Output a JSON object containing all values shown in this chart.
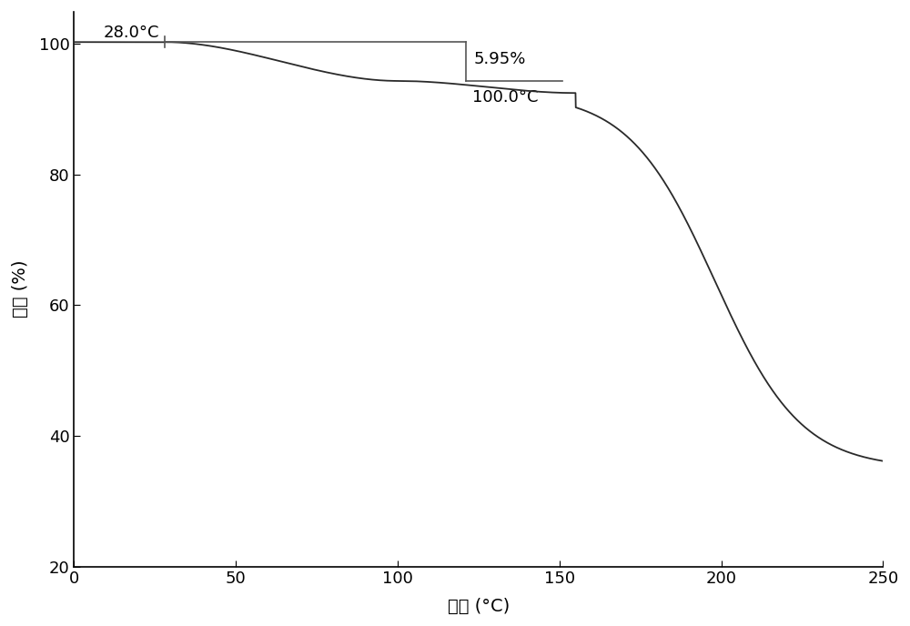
{
  "xlabel": "温度 (°C)",
  "ylabel": "重量 (%)",
  "xlim": [
    0,
    250
  ],
  "ylim": [
    20,
    105
  ],
  "xticks": [
    0,
    50,
    100,
    150,
    200,
    250
  ],
  "yticks": [
    20,
    40,
    60,
    80,
    100
  ],
  "line_color": "#2a2a2a",
  "annotation_line_color": "#555555",
  "bg_color": "#ffffff",
  "label_28": "28.0°C",
  "label_100": "100.0°C",
  "label_pct": "5.95%",
  "ann_top_y": 100.3,
  "ann_bot_y": 94.35,
  "ann_left_x": 28.0,
  "ann_right_x": 121.0,
  "figsize": [
    10.0,
    6.88
  ],
  "dpi": 100
}
